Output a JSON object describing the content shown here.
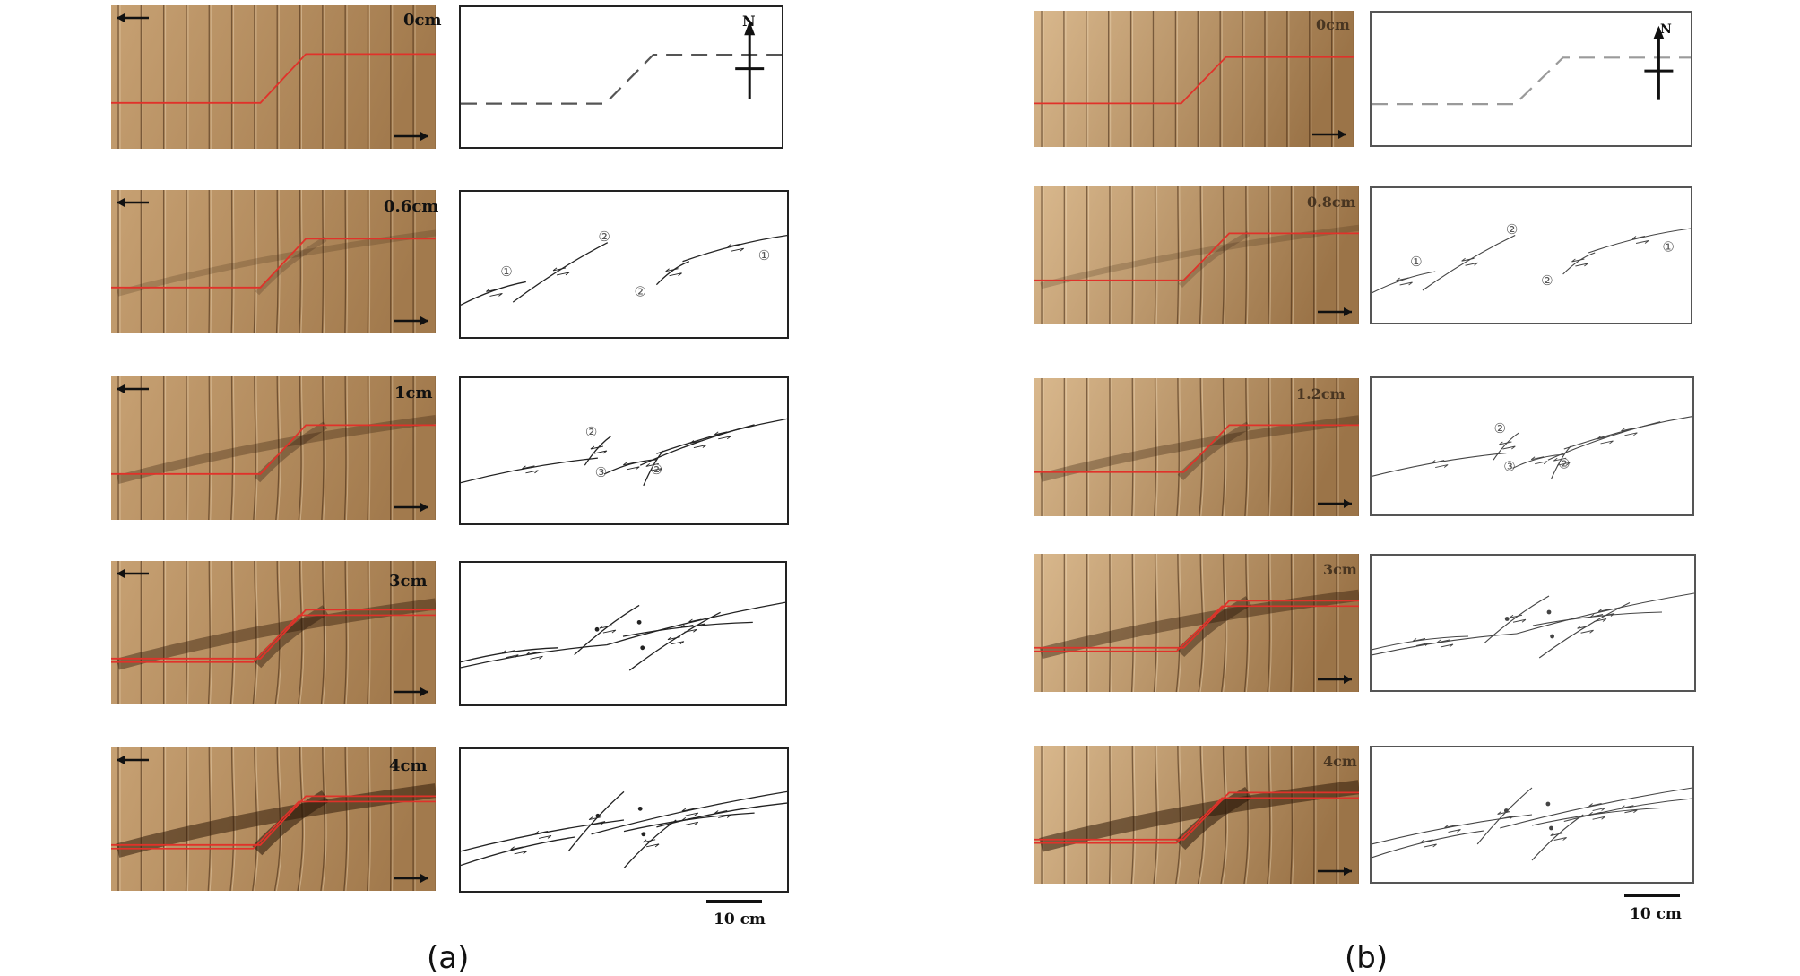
{
  "panels": {
    "a": {
      "caption": "(a)",
      "scale_label": "10 cm",
      "north_label": "N",
      "rows": [
        {
          "displacement": "0cm",
          "markers": []
        },
        {
          "displacement": "0.6cm",
          "markers": [
            "①",
            "②",
            "②",
            "①"
          ]
        },
        {
          "displacement": "1cm",
          "markers": [
            "②",
            "③",
            "②"
          ]
        },
        {
          "displacement": "3cm",
          "markers": []
        },
        {
          "displacement": "4cm",
          "markers": []
        }
      ]
    },
    "b": {
      "caption": "(b)",
      "scale_label": "10 cm",
      "north_label": "N",
      "rows": [
        {
          "displacement": "0cm",
          "markers": []
        },
        {
          "displacement": "0.8cm",
          "markers": [
            "①",
            "②",
            "②",
            "①"
          ]
        },
        {
          "displacement": "1.2cm",
          "markers": [
            "②",
            "③",
            "②"
          ]
        },
        {
          "displacement": "3cm",
          "markers": []
        },
        {
          "displacement": "4cm",
          "markers": []
        }
      ]
    }
  },
  "colors": {
    "clay_light": "#c9a477",
    "clay_dark": "#6b4a2a",
    "red_marker": "#e0322a",
    "ink": "#222222"
  }
}
